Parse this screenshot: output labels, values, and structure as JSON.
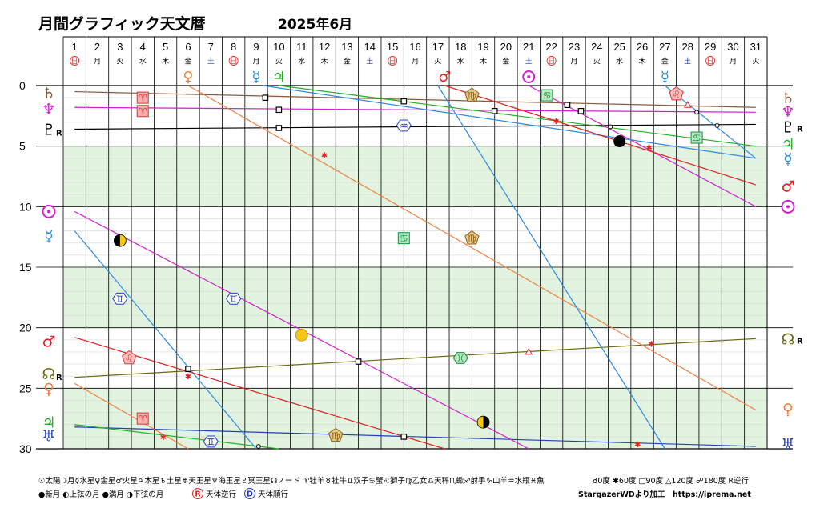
{
  "chart_data": {
    "type": "line",
    "title": "月間グラフィック天文暦",
    "subtitle": "2025年6月",
    "xlim": [
      1,
      31
    ],
    "ylim": [
      0,
      30
    ],
    "yticks": [
      "0",
      "5",
      "10",
      "15",
      "20",
      "25",
      "30"
    ],
    "days": [
      "1",
      "2",
      "3",
      "4",
      "5",
      "6",
      "7",
      "8",
      "9",
      "10",
      "11",
      "12",
      "13",
      "14",
      "15",
      "16",
      "17",
      "18",
      "19",
      "20",
      "21",
      "22",
      "23",
      "24",
      "25",
      "26",
      "27",
      "28",
      "29",
      "30",
      "31"
    ],
    "weekdays": [
      "日",
      "月",
      "火",
      "水",
      "木",
      "金",
      "土",
      "日",
      "月",
      "火",
      "水",
      "木",
      "金",
      "土",
      "日",
      "月",
      "火",
      "水",
      "木",
      "金",
      "土",
      "日",
      "月",
      "火",
      "水",
      "木",
      "金",
      "土",
      "日",
      "月",
      "火"
    ],
    "weekday_colors": {
      "日": "#e03030",
      "土": "#2040c0",
      "default": "#000000"
    },
    "grid": true,
    "shaded_bands": [
      [
        5,
        10
      ],
      [
        15,
        20
      ],
      [
        25,
        30
      ]
    ],
    "series": [
      {
        "name": "土星",
        "glyph": "♄",
        "color": "#8b5a3c",
        "points": [
          [
            1,
            0.5
          ],
          [
            31,
            1.8
          ]
        ],
        "retro": false
      },
      {
        "name": "海王星",
        "glyph": "♆",
        "color": "#d020d0",
        "points": [
          [
            1,
            1.8
          ],
          [
            31,
            2.2
          ]
        ],
        "retro": false
      },
      {
        "name": "冥王星",
        "glyph": "♇",
        "color": "#000000",
        "points": [
          [
            1,
            3.6
          ],
          [
            31,
            3.2
          ]
        ],
        "retro": true
      },
      {
        "name": "天王星",
        "glyph": "♅",
        "color": "#2040c0",
        "points": [
          [
            1,
            28.2
          ],
          [
            31,
            29.8
          ]
        ],
        "retro": false
      },
      {
        "name": "木星",
        "glyph": "♃",
        "color": "#20b020",
        "points": [
          [
            10,
            0.0
          ],
          [
            31,
            5.0
          ]
        ]
      },
      {
        "name": "木星",
        "glyph": "♃",
        "color": "#20b020",
        "points": [
          [
            1,
            28.0
          ],
          [
            10,
            30.0
          ]
        ]
      },
      {
        "name": "ノード",
        "glyph": "☊",
        "color": "#6b6b10",
        "points": [
          [
            1,
            24.1
          ],
          [
            31,
            20.9
          ]
        ],
        "retro": true
      },
      {
        "name": "太陽",
        "glyph": "☉",
        "color": "#d020d0",
        "points": [
          [
            21,
            0.0
          ],
          [
            31,
            10.0
          ]
        ]
      },
      {
        "name": "太陽",
        "glyph": "☉",
        "color": "#d020d0",
        "points": [
          [
            1,
            10.4
          ],
          [
            21,
            30.0
          ]
        ]
      },
      {
        "name": "水星",
        "glyph": "☿",
        "color": "#2a8ae0",
        "points": [
          [
            9.3,
            0.0
          ],
          [
            31,
            6.0
          ]
        ]
      },
      {
        "name": "水星",
        "glyph": "☿",
        "color": "#2a8ae0",
        "points": [
          [
            1,
            12.0
          ],
          [
            9,
            30.0
          ]
        ]
      },
      {
        "name": "水星",
        "glyph": "☿",
        "color": "#2a8ae0",
        "points": [
          [
            27,
            0.0
          ],
          [
            31,
            6.0
          ]
        ]
      },
      {
        "name": "金星",
        "glyph": "♀",
        "color": "#f08040",
        "points": [
          [
            6,
            0.0
          ],
          [
            31,
            26.8
          ]
        ]
      },
      {
        "name": "金星",
        "glyph": "♀",
        "color": "#f08040",
        "points": [
          [
            1,
            24.6
          ],
          [
            6,
            30.0
          ]
        ]
      },
      {
        "name": "火星",
        "glyph": "♂",
        "color": "#e02020",
        "points": [
          [
            17.3,
            0.0
          ],
          [
            31,
            8.2
          ]
        ]
      },
      {
        "name": "火星",
        "glyph": "♂",
        "color": "#e02020",
        "points": [
          [
            1,
            20.8
          ],
          [
            17.3,
            30.0
          ]
        ]
      },
      {
        "name": "月",
        "glyph": "☽",
        "color": "#2a8ae0",
        "points": [
          [
            17,
            0
          ],
          [
            27,
            30
          ]
        ]
      }
    ],
    "moon_phases": [
      {
        "day": 3,
        "degree": 12.8,
        "phase": "上弦の月"
      },
      {
        "day": 11,
        "degree": 20.6,
        "phase": "満月"
      },
      {
        "day": 19,
        "degree": 27.8,
        "phase": "下弦の月"
      },
      {
        "day": 25,
        "degree": 4.6,
        "phase": "新月"
      }
    ],
    "aspects": [
      {
        "day": 9.4,
        "degree": 1.0,
        "type": "square"
      },
      {
        "day": 10,
        "degree": 2.0,
        "type": "square"
      },
      {
        "day": 10,
        "degree": 3.5,
        "type": "square"
      },
      {
        "day": 15.5,
        "degree": 1.3,
        "type": "square"
      },
      {
        "day": 19.5,
        "degree": 2.1,
        "type": "square"
      },
      {
        "day": 22.7,
        "degree": 1.6,
        "type": "square"
      },
      {
        "day": 23.3,
        "degree": 2.1,
        "type": "square"
      },
      {
        "day": 6,
        "degree": 23.4,
        "type": "square"
      },
      {
        "day": 13.5,
        "degree": 22.8,
        "type": "square"
      },
      {
        "day": 15.5,
        "degree": 29.0,
        "type": "square"
      },
      {
        "day": 12,
        "degree": 5.7,
        "type": "sextile"
      },
      {
        "day": 22.2,
        "degree": 2.9,
        "type": "sextile"
      },
      {
        "day": 26.3,
        "degree": 5.1,
        "type": "sextile"
      },
      {
        "day": 6,
        "degree": 24.0,
        "type": "sextile"
      },
      {
        "day": 4.9,
        "degree": 29.0,
        "type": "sextile"
      },
      {
        "day": 26.4,
        "degree": 21.3,
        "type": "sextile"
      },
      {
        "day": 25.8,
        "degree": 29.6,
        "type": "sextile"
      },
      {
        "day": 28,
        "degree": 1.6,
        "type": "trine"
      },
      {
        "day": 21,
        "degree": 22.0,
        "type": "trine"
      },
      {
        "day": 28.4,
        "degree": 2.2,
        "type": "opposition"
      },
      {
        "day": 24.6,
        "degree": 3.4,
        "type": "opposition"
      },
      {
        "day": 29.3,
        "degree": 3.3,
        "type": "opposition"
      },
      {
        "day": 9.1,
        "degree": 29.8,
        "type": "opposition"
      }
    ],
    "moon_ingress": [
      {
        "day": 4,
        "degree": 1.0,
        "glyph": "♈"
      },
      {
        "day": 4,
        "degree": 2.1,
        "glyph": "♈"
      },
      {
        "day": 4,
        "degree": 27.5,
        "glyph": "♈"
      },
      {
        "day": 15.5,
        "degree": 3.3,
        "glyph": "♒"
      },
      {
        "day": 18.5,
        "degree": 0.8,
        "glyph": "♍"
      },
      {
        "day": 21.8,
        "degree": 0.8,
        "glyph": "♋"
      },
      {
        "day": 27.5,
        "degree": 0.7,
        "glyph": "♌"
      },
      {
        "day": 28.4,
        "degree": 4.3,
        "glyph": "♋"
      },
      {
        "day": 15.5,
        "degree": 12.6,
        "glyph": "♋"
      },
      {
        "day": 18.5,
        "degree": 12.6,
        "glyph": "♍"
      },
      {
        "day": 3,
        "degree": 17.6,
        "glyph": "♊"
      },
      {
        "day": 8,
        "degree": 17.6,
        "glyph": "♊"
      },
      {
        "day": 3.4,
        "degree": 22.5,
        "glyph": "♌"
      },
      {
        "day": 18,
        "degree": 22.5,
        "glyph": "♓"
      },
      {
        "day": 12.5,
        "degree": 28.9,
        "glyph": "♍"
      },
      {
        "day": 7,
        "degree": 29.4,
        "glyph": "♊"
      }
    ],
    "right_labels": [
      {
        "glyph": "♄",
        "degree": 1.0,
        "retro": false
      },
      {
        "glyph": "♆",
        "degree": 2.1,
        "retro": false
      },
      {
        "glyph": "♇",
        "degree": 3.4,
        "retro": true
      },
      {
        "glyph": "♃",
        "degree": 4.8,
        "retro": false
      },
      {
        "glyph": "☿",
        "degree": 6.0,
        "retro": false
      },
      {
        "glyph": "♂",
        "degree": 8.3,
        "retro": false
      },
      {
        "glyph": "☉",
        "degree": 10.0,
        "retro": false
      },
      {
        "glyph": "☊",
        "degree": 20.9,
        "retro": true
      },
      {
        "glyph": "♀",
        "degree": 26.7,
        "retro": false
      },
      {
        "glyph": "♅",
        "degree": 29.6,
        "retro": false
      }
    ],
    "left_labels": [
      {
        "glyph": "♄",
        "degree": 0.6,
        "retro": false
      },
      {
        "glyph": "♆",
        "degree": 1.9,
        "retro": false
      },
      {
        "glyph": "♇",
        "degree": 3.6,
        "retro": true
      },
      {
        "glyph": "☉",
        "degree": 10.4,
        "retro": false
      },
      {
        "glyph": "☿",
        "degree": 12.4,
        "retro": false
      },
      {
        "glyph": "♂",
        "degree": 21.1,
        "retro": false
      },
      {
        "glyph": "☊",
        "degree": 23.8,
        "retro": true
      },
      {
        "glyph": "♀",
        "degree": 25.0,
        "retro": false
      },
      {
        "glyph": "♃",
        "degree": 27.8,
        "retro": false
      },
      {
        "glyph": "♅",
        "degree": 28.9,
        "retro": false
      }
    ],
    "ingress_markers": [
      {
        "day": 6,
        "glyph": "♀"
      },
      {
        "day": 9,
        "glyph": "☿"
      },
      {
        "day": 10,
        "glyph": "♃"
      },
      {
        "day": 17.3,
        "glyph": "♂"
      },
      {
        "day": 21,
        "glyph": "☉"
      },
      {
        "day": 27,
        "glyph": "☿"
      }
    ]
  },
  "legend": {
    "line1": "☉太陽☽月☿水星♀金星♂火星♃木星♄土星♅天王星♆海王星♇冥王星☊ノード ♈牡羊♉牡牛♊双子♋蟹♌獅子♍乙女♎天秤♏蠍♐射手♑山羊♒水瓶♓魚",
    "line2_left": "●新月 ◐上弦の月 ●満月 ◑下弦の月",
    "retro_text": "天体逆行",
    "direct_text": "天体順行",
    "aspect_legend": "☌0度 ✱60度 □90度 △120度 ☍180度 R逆行",
    "credit": "StargazerWDより加工　https://iprema.net"
  },
  "retro_mark": "R",
  "direct_mark": "D"
}
